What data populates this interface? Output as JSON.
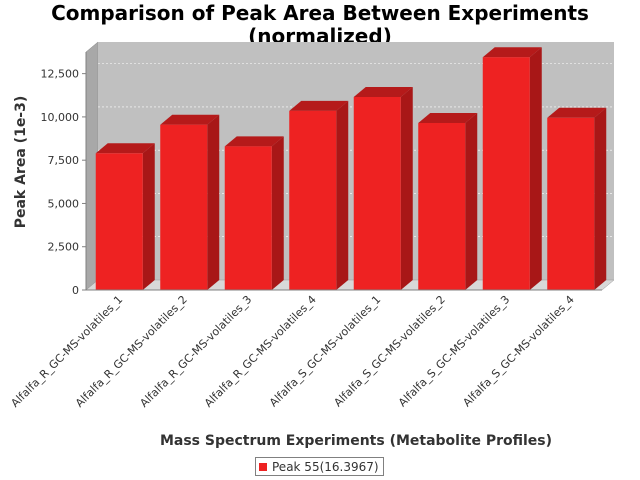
{
  "chart_data": {
    "type": "bar",
    "title_lines": [
      "Comparison of Peak Area Between Experiments",
      "(normalized)"
    ],
    "xlabel": "Mass Spectrum Experiments (Metabolite Profiles)",
    "ylabel": "Peak Area (1e-3)",
    "categories": [
      "Alfalfa_R_GC-MS-volatiles_1",
      "Alfalfa_R_GC-MS-volatiles_2",
      "Alfalfa_R_GC-MS-volatiles_3",
      "Alfalfa_R_GC-MS-volatiles_4",
      "Alfalfa_S_GC-MS-volatiles_1",
      "Alfalfa_S_GC-MS-volatiles_2",
      "Alfalfa_S_GC-MS-volatiles_3",
      "Alfalfa_S_GC-MS-volatiles_4"
    ],
    "series": [
      {
        "name": "Peak 55(16.3967)",
        "color": "#ee2222",
        "values": [
          7900,
          9550,
          8300,
          10350,
          11150,
          9650,
          13450,
          9950
        ]
      }
    ],
    "ylim": [
      0,
      13750
    ],
    "yticks": [
      0,
      2500,
      5000,
      7500,
      10000,
      12500
    ],
    "ytick_labels": [
      "0",
      "2,500",
      "5,000",
      "7,500",
      "10,000",
      "12,500"
    ],
    "grid": true,
    "legend_position": "bottom",
    "colors": {
      "plot_background": "#c0c0c0",
      "bar": "#ee2222",
      "bar_top": "#b51a1a",
      "bar_side": "#a81717"
    }
  }
}
